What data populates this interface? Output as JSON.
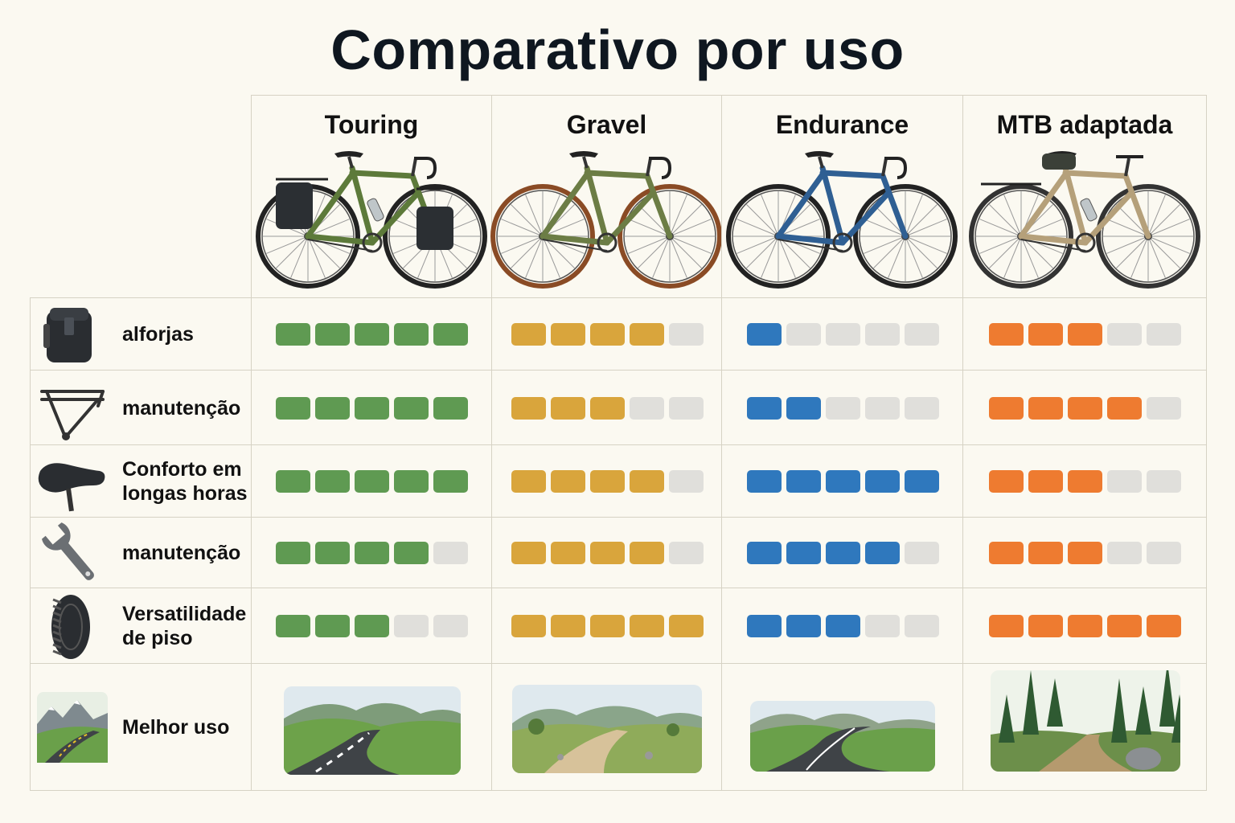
{
  "title": "Comparativo por uso",
  "colors": {
    "Touring": "#5f9a52",
    "Gravel": "#d9a53c",
    "Endurance": "#2f78bd",
    "MTB adaptada": "#ee7b30",
    "empty": "#e0dfdb"
  },
  "columns": [
    {
      "name": "Touring",
      "bike_icon": "touring-bike-icon",
      "scene_icon": "paved-road-scene-icon"
    },
    {
      "name": "Gravel",
      "bike_icon": "gravel-bike-icon",
      "scene_icon": "gravel-road-scene-icon"
    },
    {
      "name": "Endurance",
      "bike_icon": "endurance-bike-icon",
      "scene_icon": "winding-road-scene-icon"
    },
    {
      "name": "MTB  adaptada",
      "bike_icon": "mtb-bike-icon",
      "scene_icon": "forest-trail-scene-icon"
    }
  ],
  "rows": [
    {
      "label_lines": [
        "alforjas"
      ],
      "icon": "pannier-bag-icon",
      "ratings": [
        5,
        4,
        1,
        3
      ]
    },
    {
      "label_lines": [
        "manutenção"
      ],
      "icon": "bike-rack-icon",
      "ratings": [
        5,
        3,
        2,
        4
      ]
    },
    {
      "label_lines": [
        "Conforto em",
        "longas horas"
      ],
      "icon": "saddle-icon",
      "ratings": [
        5,
        4,
        5,
        3
      ]
    },
    {
      "label_lines": [
        "manutenção"
      ],
      "icon": "wrench-icon",
      "ratings": [
        4,
        4,
        4,
        3
      ]
    },
    {
      "label_lines": [
        "Versatilidade",
        "de piso"
      ],
      "icon": "tire-icon",
      "ratings": [
        3,
        5,
        3,
        5
      ]
    }
  ],
  "max_rating": 5,
  "best_use": {
    "label": "Melhor uso",
    "icon": "mountain-road-icon"
  }
}
